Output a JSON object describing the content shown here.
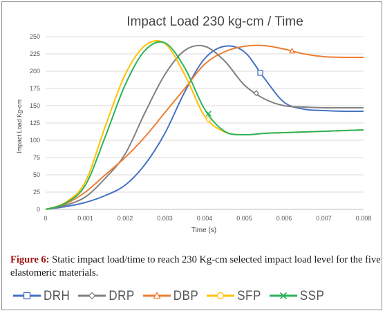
{
  "chart_data": {
    "type": "line",
    "title": "Impact Load 230 kg-cm / Time",
    "xlabel": "Time (s)",
    "ylabel": "Impact Load Kg-cm",
    "xlim": [
      0,
      0.008
    ],
    "ylim": [
      0,
      250
    ],
    "x_ticks": [
      "0",
      "0.001",
      "0.002",
      "0.003",
      "0.004",
      "0.005",
      "0.006",
      "0.007",
      "0.008"
    ],
    "y_ticks": [
      "0",
      "25",
      "50",
      "75",
      "100",
      "125",
      "150",
      "175",
      "200",
      "225",
      "250"
    ],
    "grid": "horizontal",
    "legend_position": "bottom",
    "x": [
      0,
      0.0005,
      0.001,
      0.0015,
      0.002,
      0.0025,
      0.003,
      0.0035,
      0.004,
      0.0045,
      0.005,
      0.0055,
      0.006,
      0.0065,
      0.007,
      0.0075,
      0.008
    ],
    "series": [
      {
        "name": "DRH",
        "color": "#4472c4",
        "marker": "square",
        "marker_x": 0.0054,
        "values": [
          0,
          4,
          10,
          20,
          35,
          65,
          110,
          170,
          218,
          236,
          228,
          190,
          155,
          145,
          143,
          142,
          142
        ]
      },
      {
        "name": "DRP",
        "color": "#808080",
        "marker": "diamond",
        "marker_x": 0.0053,
        "values": [
          0,
          6,
          18,
          45,
          80,
          140,
          195,
          230,
          236,
          215,
          180,
          160,
          150,
          148,
          147,
          147,
          147
        ]
      },
      {
        "name": "DBP",
        "color": "#ed7d31",
        "marker": "triangle",
        "marker_x": 0.0062,
        "values": [
          0,
          8,
          25,
          50,
          75,
          105,
          140,
          175,
          210,
          228,
          236,
          237,
          232,
          225,
          221,
          220,
          220
        ]
      },
      {
        "name": "SFP",
        "color": "#ffc000",
        "marker": "circle",
        "marker_x": 0.0041,
        "values": [
          0,
          10,
          40,
          120,
          195,
          237,
          240,
          195,
          135,
          112,
          108,
          110,
          111,
          112,
          113,
          114,
          115
        ]
      },
      {
        "name": "SSP",
        "color": "#2bb35a",
        "marker": "x",
        "marker_x": 0.0041,
        "values": [
          0,
          9,
          35,
          105,
          180,
          230,
          241,
          205,
          145,
          113,
          108,
          110,
          111,
          112,
          113,
          114,
          115
        ]
      }
    ]
  },
  "caption": {
    "label": "Figure 6:",
    "text": " Static impact load/time to reach 230 Kg-cm selected impact load level for the five elastomeric materials."
  }
}
